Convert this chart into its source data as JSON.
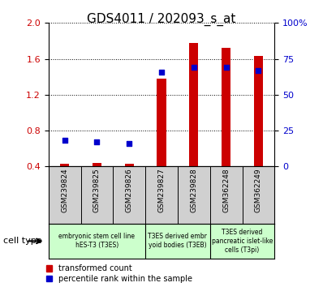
{
  "title": "GDS4011 / 202093_s_at",
  "samples": [
    "GSM239824",
    "GSM239825",
    "GSM239826",
    "GSM239827",
    "GSM239828",
    "GSM362248",
    "GSM362249"
  ],
  "transformed_count": [
    0.43,
    0.44,
    0.43,
    1.38,
    1.78,
    1.72,
    1.63
  ],
  "percentile_rank_pct": [
    18,
    17,
    16,
    66,
    69,
    69,
    67
  ],
  "ylim_left": [
    0.4,
    2.0
  ],
  "ylim_right": [
    0,
    100
  ],
  "yticks_left": [
    0.4,
    0.8,
    1.2,
    1.6,
    2.0
  ],
  "yticks_right": [
    0,
    25,
    50,
    75,
    100
  ],
  "ytick_labels_right": [
    "0",
    "25",
    "50",
    "75",
    "100%"
  ],
  "bar_color": "#cc0000",
  "dot_color": "#0000cc",
  "bar_width": 0.28,
  "dot_size": 22,
  "group_boundaries": [
    {
      "start": 0,
      "end": 2,
      "label": "embryonic stem cell line\nhES-T3 (T3ES)"
    },
    {
      "start": 3,
      "end": 4,
      "label": "T3ES derived embr\nyoid bodies (T3EB)"
    },
    {
      "start": 5,
      "end": 6,
      "label": "T3ES derived\npancreatic islet-like\ncells (T3pi)"
    }
  ],
  "group_color": "#ccffcc",
  "legend_items": [
    {
      "label": "transformed count",
      "color": "#cc0000"
    },
    {
      "label": "percentile rank within the sample",
      "color": "#0000cc"
    }
  ],
  "cell_type_label": "cell type",
  "tick_label_color_left": "#cc0000",
  "tick_label_color_right": "#0000cc",
  "sample_box_color": "#d0d0d0"
}
